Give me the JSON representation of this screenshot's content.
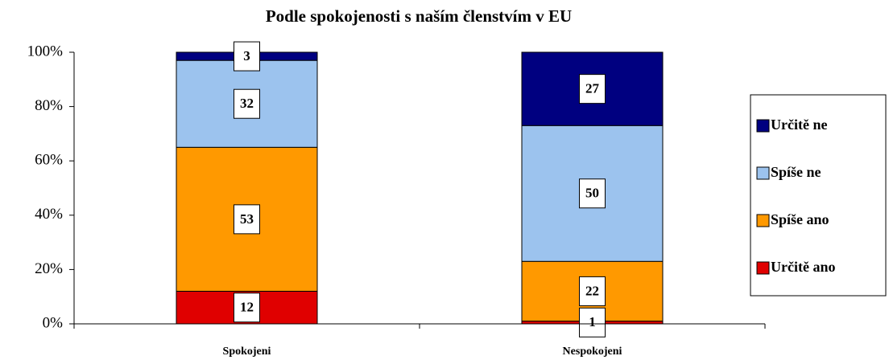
{
  "chart_data": {
    "type": "stacked_bar",
    "title": "Podle spokojenosti s naším členstvím v EU",
    "categories": [
      "Spokojeni",
      "Nespokojeni"
    ],
    "series": [
      {
        "name": "Určitě ano",
        "color": "#e00000",
        "values": [
          12,
          1
        ]
      },
      {
        "name": "Spíše ano",
        "color": "#ff9900",
        "values": [
          53,
          22
        ]
      },
      {
        "name": "Spíše ne",
        "color": "#9cc3ee",
        "values": [
          32,
          50
        ]
      },
      {
        "name": "Určitě ne",
        "color": "#000080",
        "values": [
          3,
          27
        ]
      }
    ],
    "ylim": [
      0,
      100
    ],
    "yticks": [
      {
        "value": 0,
        "label": "0%"
      },
      {
        "value": 20,
        "label": "20%"
      },
      {
        "value": 40,
        "label": "40%"
      },
      {
        "value": 60,
        "label": "60%"
      },
      {
        "value": 80,
        "label": "80%"
      },
      {
        "value": 100,
        "label": "100%"
      }
    ],
    "legend": "right"
  }
}
